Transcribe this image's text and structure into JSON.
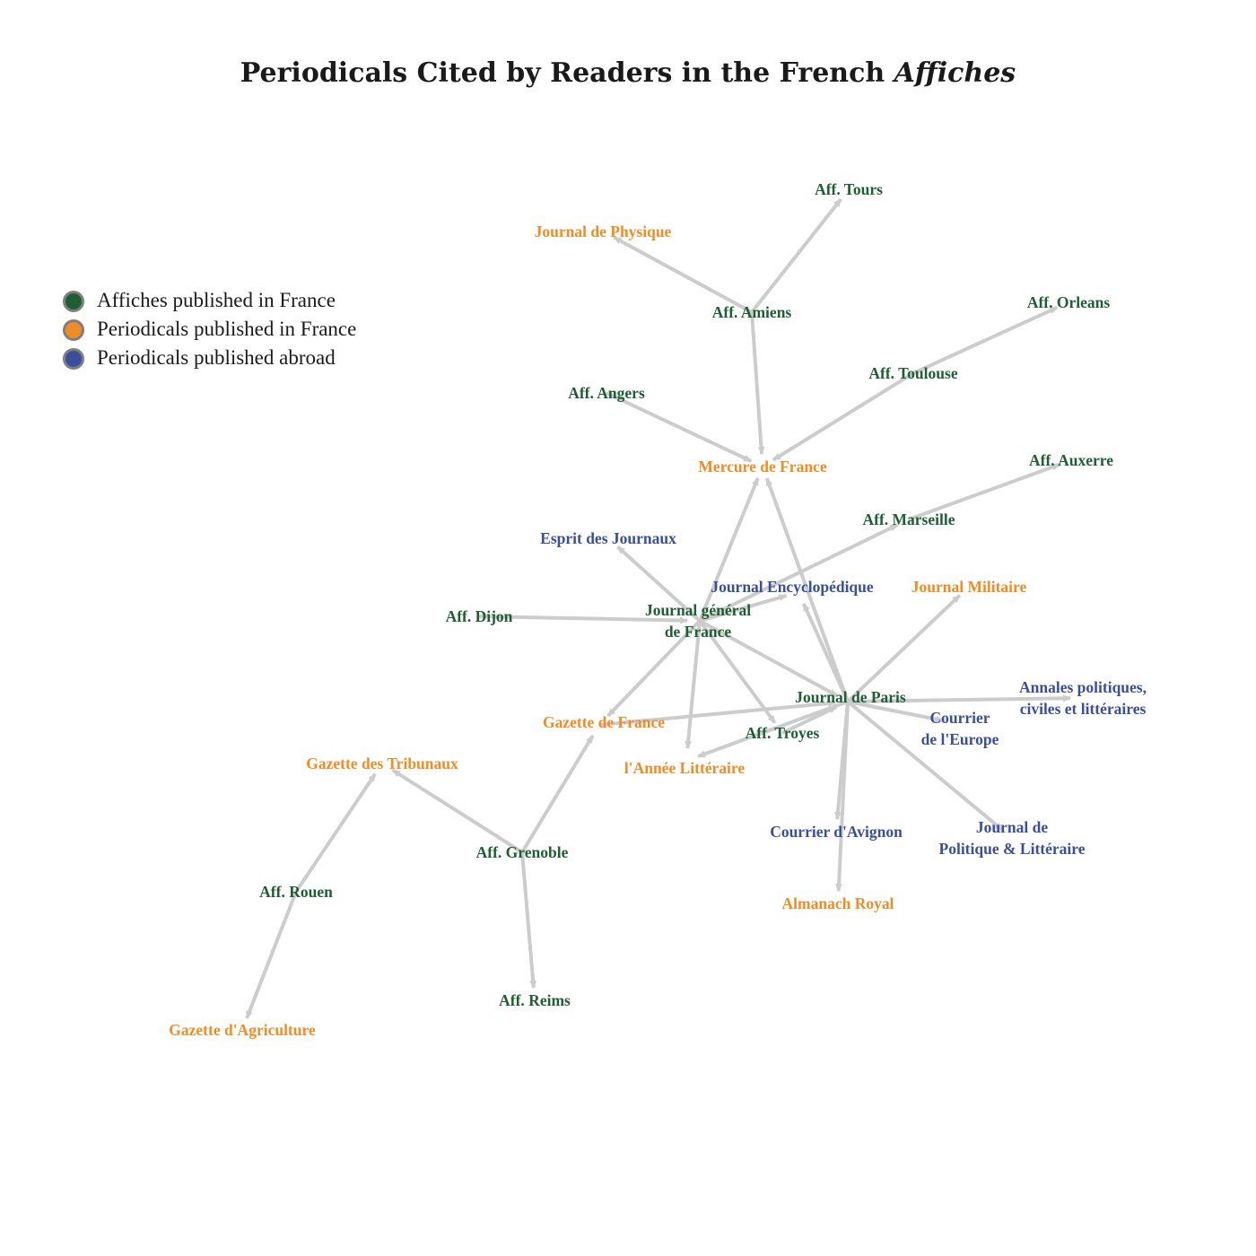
{
  "title": {
    "main": "Periodicals Cited by Readers in the French ",
    "italic": "Affiches"
  },
  "colors": {
    "affiches_france": "#1e5e32",
    "periodicals_france": "#f08c25",
    "periodicals_abroad": "#3a4f9a",
    "edge": "#cccccc"
  },
  "legend": [
    {
      "label": "Affiches published in France",
      "color": "#1e5e32"
    },
    {
      "label": "Periodicals published in France",
      "color": "#f08c25"
    },
    {
      "label": "Periodicals published abroad",
      "color": "#3a4f9a"
    }
  ],
  "nodes": [
    {
      "id": "tours",
      "lines": [
        "Aff. Tours"
      ],
      "group": "affiches_france"
    },
    {
      "id": "physique",
      "lines": [
        "Journal de Physique"
      ],
      "group": "periodicals_france"
    },
    {
      "id": "amiens",
      "lines": [
        "Aff. Amiens"
      ],
      "group": "affiches_france"
    },
    {
      "id": "orleans",
      "lines": [
        "Aff. Orleans"
      ],
      "group": "affiches_france"
    },
    {
      "id": "toulouse",
      "lines": [
        "Aff. Toulouse"
      ],
      "group": "affiches_france"
    },
    {
      "id": "angers",
      "lines": [
        "Aff. Angers"
      ],
      "group": "affiches_france"
    },
    {
      "id": "mercure",
      "lines": [
        "Mercure de France"
      ],
      "group": "periodicals_france"
    },
    {
      "id": "auxerre",
      "lines": [
        "Aff. Auxerre"
      ],
      "group": "affiches_france"
    },
    {
      "id": "marseille",
      "lines": [
        "Aff. Marseille"
      ],
      "group": "affiches_france"
    },
    {
      "id": "esprit",
      "lines": [
        "Esprit des Journaux"
      ],
      "group": "periodicals_abroad"
    },
    {
      "id": "encyclo",
      "lines": [
        "Journal Encyclopédique"
      ],
      "group": "periodicals_abroad"
    },
    {
      "id": "militaire",
      "lines": [
        "Journal Militaire"
      ],
      "group": "periodicals_france"
    },
    {
      "id": "dijon",
      "lines": [
        "Aff. Dijon"
      ],
      "group": "affiches_france"
    },
    {
      "id": "jgf",
      "lines": [
        "Journal général",
        "de France"
      ],
      "group": "affiches_france"
    },
    {
      "id": "paris",
      "lines": [
        "Journal de Paris"
      ],
      "group": "affiches_france"
    },
    {
      "id": "annales",
      "lines": [
        "Annales politiques,",
        "civiles et littéraires"
      ],
      "group": "periodicals_abroad"
    },
    {
      "id": "gazette",
      "lines": [
        "Gazette de France"
      ],
      "group": "periodicals_france"
    },
    {
      "id": "courrier_europe",
      "lines": [
        "Courrier",
        "de l'Europe"
      ],
      "group": "periodicals_abroad"
    },
    {
      "id": "troyes",
      "lines": [
        "Aff. Troyes"
      ],
      "group": "affiches_france"
    },
    {
      "id": "tribunaux",
      "lines": [
        "Gazette des Tribunaux"
      ],
      "group": "periodicals_france"
    },
    {
      "id": "annee",
      "lines": [
        "l'Année Littéraire"
      ],
      "group": "periodicals_france"
    },
    {
      "id": "avignon",
      "lines": [
        "Courrier d'Avignon"
      ],
      "group": "periodicals_abroad"
    },
    {
      "id": "politique",
      "lines": [
        "Journal de",
        "Politique & Littéraire"
      ],
      "group": "periodicals_abroad"
    },
    {
      "id": "grenoble",
      "lines": [
        "Aff. Grenoble"
      ],
      "group": "affiches_france"
    },
    {
      "id": "rouen",
      "lines": [
        "Aff. Rouen"
      ],
      "group": "affiches_france"
    },
    {
      "id": "almanach",
      "lines": [
        "Almanach Royal"
      ],
      "group": "periodicals_france"
    },
    {
      "id": "reims",
      "lines": [
        "Aff. Reims"
      ],
      "group": "affiches_france"
    },
    {
      "id": "agriculture",
      "lines": [
        "Gazette d'Agriculture"
      ],
      "group": "periodicals_france"
    }
  ],
  "edges": [
    {
      "from": "amiens",
      "to": "tours"
    },
    {
      "from": "amiens",
      "to": "physique"
    },
    {
      "from": "amiens",
      "to": "mercure"
    },
    {
      "from": "toulouse",
      "to": "orleans"
    },
    {
      "from": "toulouse",
      "to": "mercure"
    },
    {
      "from": "angers",
      "to": "mercure"
    },
    {
      "from": "marseille",
      "to": "auxerre"
    },
    {
      "from": "jgf",
      "to": "mercure"
    },
    {
      "from": "paris",
      "to": "mercure"
    },
    {
      "from": "jgf",
      "to": "marseille"
    },
    {
      "from": "jgf",
      "to": "esprit"
    },
    {
      "from": "jgf",
      "to": "encyclo"
    },
    {
      "from": "paris",
      "to": "encyclo"
    },
    {
      "from": "paris",
      "to": "militaire"
    },
    {
      "from": "dijon",
      "to": "jgf"
    },
    {
      "from": "jgf",
      "to": "paris"
    },
    {
      "from": "jgf",
      "to": "gazette"
    },
    {
      "from": "jgf",
      "to": "annee"
    },
    {
      "from": "jgf",
      "to": "troyes"
    },
    {
      "from": "paris",
      "to": "annales"
    },
    {
      "from": "gazette",
      "to": "paris"
    },
    {
      "from": "troyes",
      "to": "paris"
    },
    {
      "from": "paris",
      "to": "annee"
    },
    {
      "from": "paris",
      "to": "courrier_europe"
    },
    {
      "from": "paris",
      "to": "politique"
    },
    {
      "from": "paris",
      "to": "avignon"
    },
    {
      "from": "paris",
      "to": "almanach"
    },
    {
      "from": "grenoble",
      "to": "tribunaux"
    },
    {
      "from": "grenoble",
      "to": "gazette"
    },
    {
      "from": "grenoble",
      "to": "reims"
    },
    {
      "from": "rouen",
      "to": "tribunaux"
    },
    {
      "from": "rouen",
      "to": "agriculture"
    }
  ]
}
